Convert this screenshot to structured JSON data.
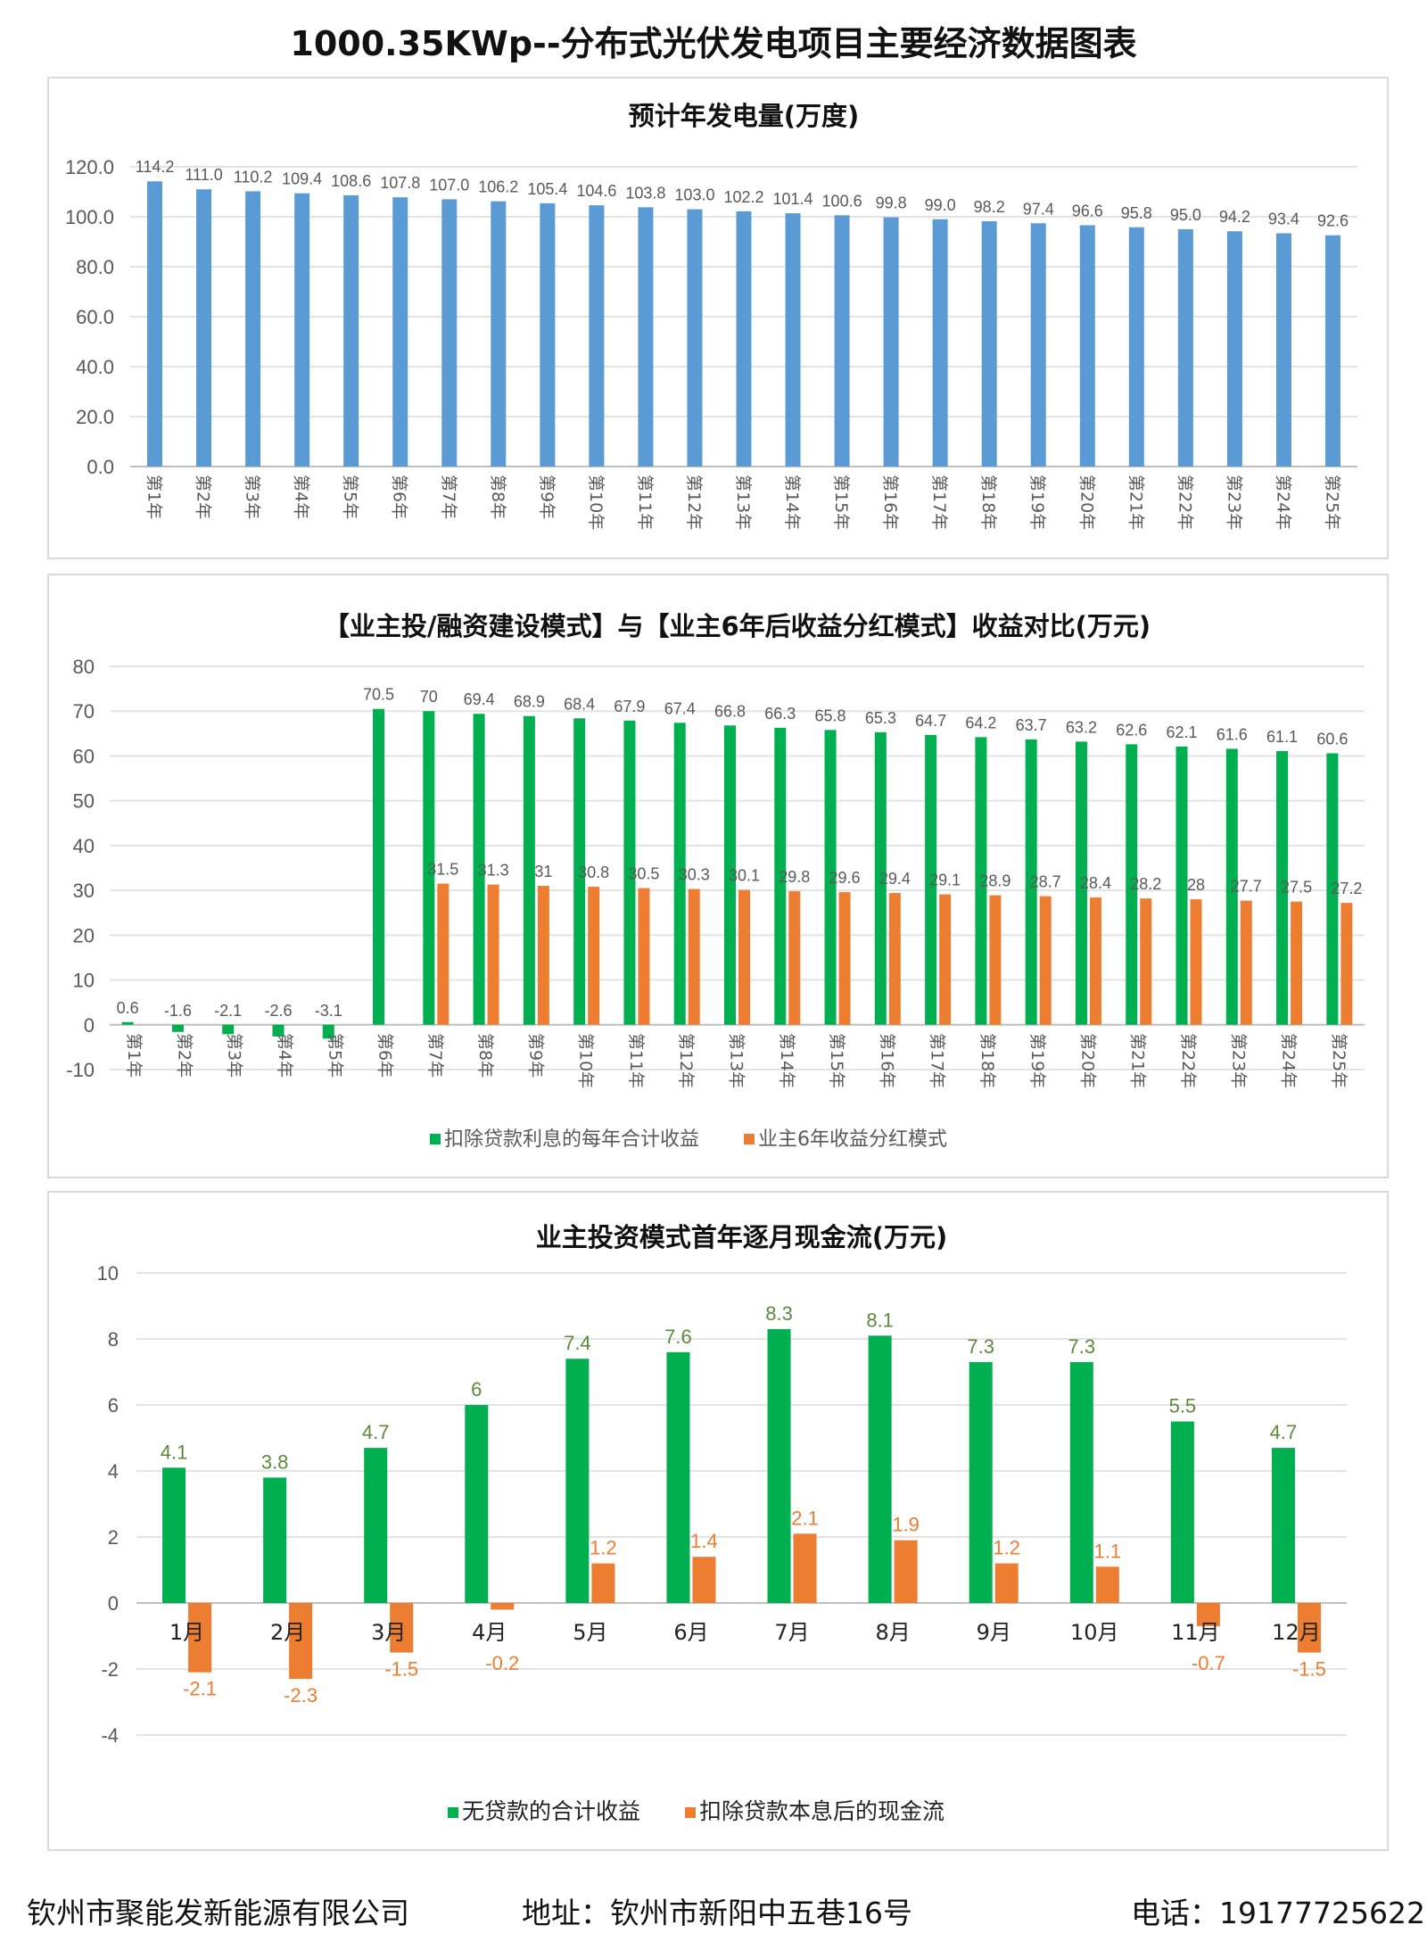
{
  "page_title": "1000.35KWp--分布式光伏发电项目主要经济数据图表",
  "watermark": "聚能发新能源",
  "footer": {
    "company": "钦州市聚能发新能源有限公司",
    "address": "地址：钦州市新阳中五巷16号",
    "phone": "电话：19177725622"
  },
  "chart_data": [
    {
      "type": "bar",
      "title": "预计年发电量(万度)",
      "categories": [
        "第1年",
        "第2年",
        "第3年",
        "第4年",
        "第5年",
        "第6年",
        "第7年",
        "第8年",
        "第9年",
        "第10年",
        "第11年",
        "第12年",
        "第13年",
        "第14年",
        "第15年",
        "第16年",
        "第17年",
        "第18年",
        "第19年",
        "第20年",
        "第21年",
        "第22年",
        "第23年",
        "第24年",
        "第25年"
      ],
      "series": [
        {
          "values": [
            114.2,
            111.0,
            110.2,
            109.4,
            108.6,
            107.8,
            107.0,
            106.2,
            105.4,
            104.6,
            103.8,
            103.0,
            102.2,
            101.4,
            100.6,
            99.8,
            99.0,
            98.2,
            97.4,
            96.6,
            95.8,
            95.0,
            94.2,
            93.4,
            92.6
          ],
          "color": "#5b9bd5"
        }
      ],
      "yticks": [
        "0.0",
        "20.0",
        "40.0",
        "60.0",
        "80.0",
        "100.0",
        "120.0"
      ],
      "ylim": [
        0,
        120
      ],
      "grid": true
    },
    {
      "type": "bar",
      "title": "【业主投/融资建设模式】与【业主6年后收益分红模式】收益对比(万元)",
      "categories": [
        "第1年",
        "第2年",
        "第3年",
        "第4年",
        "第5年",
        "第6年",
        "第7年",
        "第8年",
        "第9年",
        "第10年",
        "第11年",
        "第12年",
        "第13年",
        "第14年",
        "第15年",
        "第16年",
        "第17年",
        "第18年",
        "第19年",
        "第20年",
        "第21年",
        "第22年",
        "第23年",
        "第24年",
        "第25年"
      ],
      "series": [
        {
          "name": "扣除贷款利息的每年合计收益",
          "color": "#00b050",
          "values": [
            0.6,
            -1.6,
            -2.1,
            -2.6,
            -3.1,
            70.5,
            70,
            69.4,
            68.9,
            68.4,
            67.9,
            67.4,
            66.8,
            66.3,
            65.8,
            65.3,
            64.7,
            64.2,
            63.7,
            63.2,
            62.6,
            62.1,
            61.6,
            61.1,
            60.6
          ]
        },
        {
          "name": "业主6年收益分红模式",
          "color": "#ed7d31",
          "values": [
            null,
            null,
            null,
            null,
            null,
            null,
            31.5,
            31.3,
            31,
            30.8,
            30.5,
            30.3,
            30.1,
            29.8,
            29.6,
            29.4,
            29.1,
            28.9,
            28.7,
            28.4,
            28.2,
            28,
            27.7,
            27.5,
            27.2
          ]
        }
      ],
      "yticks": [
        "-10",
        "0",
        "10",
        "20",
        "30",
        "40",
        "50",
        "60",
        "70",
        "80"
      ],
      "ylim": [
        -10,
        80
      ],
      "grid": true,
      "legend": "bottom"
    },
    {
      "type": "bar",
      "title": "业主投资模式首年逐月现金流(万元)",
      "categories": [
        "1月",
        "2月",
        "3月",
        "4月",
        "5月",
        "6月",
        "7月",
        "8月",
        "9月",
        "10月",
        "11月",
        "12月"
      ],
      "series": [
        {
          "name": "无贷款的合计收益",
          "color": "#00b050",
          "values": [
            4.1,
            3.8,
            4.7,
            6,
            7.4,
            7.6,
            8.3,
            8.1,
            7.3,
            7.3,
            5.5,
            4.7
          ]
        },
        {
          "name": "扣除贷款本息后的现金流",
          "color": "#ed7d31",
          "values": [
            -2.1,
            -2.3,
            -1.5,
            -0.2,
            1.2,
            1.4,
            2.1,
            1.9,
            1.2,
            1.1,
            -0.7,
            -1.5
          ]
        }
      ],
      "yticks": [
        "-4",
        "-2",
        "0",
        "2",
        "4",
        "6",
        "8",
        "10"
      ],
      "ylim": [
        -4,
        10
      ],
      "grid": true,
      "legend": "bottom"
    }
  ]
}
